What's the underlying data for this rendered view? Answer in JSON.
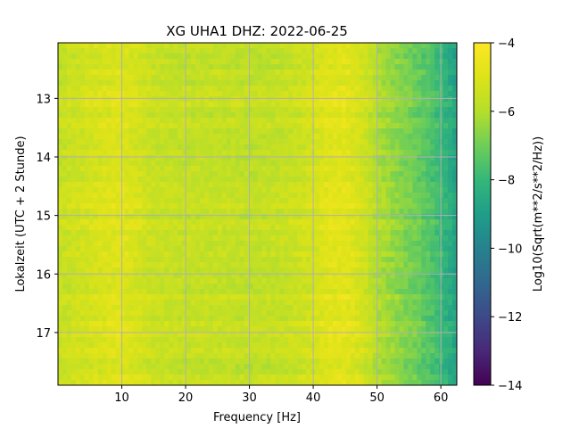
{
  "chart_data": {
    "type": "heatmap",
    "title": "XG UHA1  DHZ: 2022-06-25",
    "xlabel": "Frequency [Hz]",
    "ylabel": "Lokalzeit (UTC + 2 Stunde)",
    "xlim": [
      0,
      62.5
    ],
    "ylim": [
      17.9,
      12.05
    ],
    "x_ticks": [
      10,
      20,
      30,
      40,
      50,
      60
    ],
    "y_ticks": [
      13,
      14,
      15,
      16,
      17
    ],
    "grid": true,
    "colormap": "viridis",
    "colorbar": {
      "label": "Log10(Sqrt(m**2/s**2/Hz))",
      "range": [
        -14,
        -4
      ],
      "ticks": [
        -4,
        -6,
        -8,
        -10,
        -12,
        -14
      ],
      "tick_labels": [
        "−4",
        "−6",
        "−8",
        "−10",
        "−12",
        "−14"
      ]
    },
    "x_tick_labels": [
      "10",
      "20",
      "30",
      "40",
      "50",
      "60"
    ],
    "y_tick_labels": [
      "13",
      "14",
      "15",
      "16",
      "17"
    ],
    "spectrum_profile": {
      "frequency_hz": [
        0,
        5,
        10,
        15,
        20,
        25,
        30,
        35,
        38,
        40,
        42,
        45,
        48,
        50,
        53,
        56,
        59,
        62.5
      ],
      "log10_amplitude": [
        -5.6,
        -5.2,
        -4.9,
        -5.5,
        -5.6,
        -5.6,
        -5.7,
        -5.6,
        -5.4,
        -5.2,
        -4.9,
        -4.8,
        -5.3,
        -6.0,
        -6.5,
        -7.0,
        -7.6,
        -8.8
      ]
    }
  }
}
